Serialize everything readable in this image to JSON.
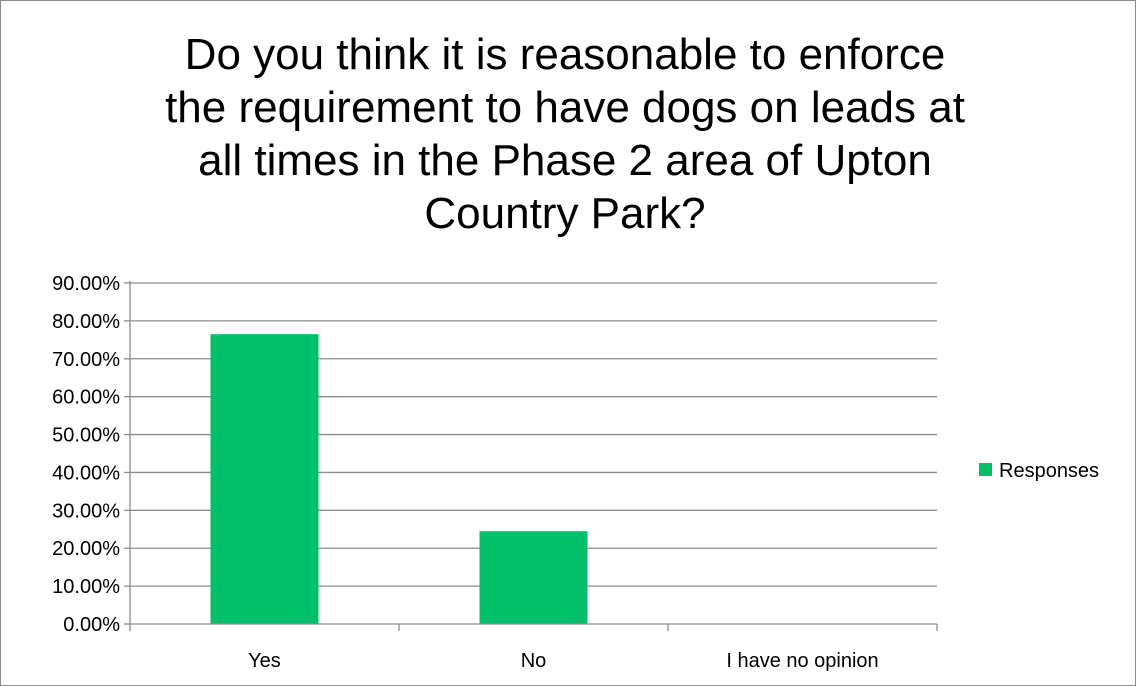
{
  "chart_data": {
    "type": "bar",
    "title": "Do you think it is reasonable to enforce\nthe requirement to have dogs on leads at\nall times in the Phase 2 area of Upton\nCountry Park?",
    "categories": [
      "Yes",
      "No",
      "I have no opinion"
    ],
    "series": [
      {
        "name": "Responses",
        "values": [
          0.765,
          0.245,
          0.0
        ],
        "color": "#00c06a"
      }
    ],
    "yticks": [
      "0.00%",
      "10.00%",
      "20.00%",
      "30.00%",
      "40.00%",
      "50.00%",
      "60.00%",
      "70.00%",
      "80.00%",
      "90.00%"
    ],
    "ylim": [
      0,
      0.9
    ],
    "grid": true,
    "legend_position": "right"
  }
}
